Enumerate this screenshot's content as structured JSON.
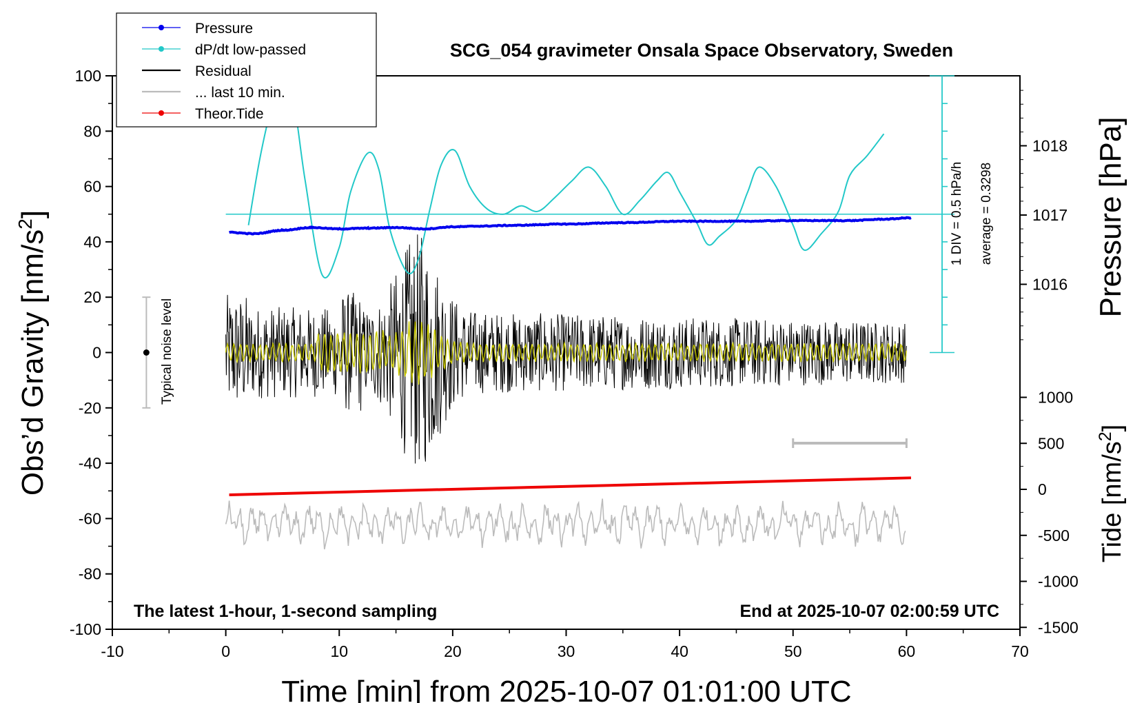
{
  "chart_data": {
    "type": "line",
    "title": "SCG_054 gravimeter Onsala Space Observatory, Sweden",
    "xlabel": "Time [min] from 2025-10-07 01:01:00 UTC",
    "ylabel_left_main": "Obs’d Gravity [nm/s",
    "ylabel_left_sup": "2",
    "ylabel_left_close": "]",
    "ylabel_right_pressure": "Pressure [hPa]",
    "ylabel_right_tide_main": "Tide [nm/s",
    "ylabel_right_tide_sup": "2",
    "ylabel_right_tide_close": "]",
    "xlim": [
      -10,
      70
    ],
    "ylim_left": [
      -100,
      100
    ],
    "x_ticks": [
      -10,
      0,
      10,
      20,
      30,
      40,
      50,
      60,
      70
    ],
    "y_ticks_left": [
      -100,
      -80,
      -60,
      -40,
      -20,
      0,
      20,
      40,
      60,
      80,
      100
    ],
    "pressure_ticks": [
      1016,
      1017,
      1018
    ],
    "tide_ticks": [
      1000,
      500,
      0,
      -500,
      -1000,
      -1500
    ],
    "annotation_bottom_left": "The latest 1-hour, 1-second sampling",
    "annotation_bottom_right": "End at 2025-10-07 02:00:59 UTC",
    "noise_label": "Typical noise level",
    "noise_range": [
      -20,
      20
    ],
    "dpdt_scale_label": "1 DIV = 0.5 hPa/h",
    "dpdt_average_label": "average = 0.3298",
    "last10_bar_range": [
      50,
      60
    ],
    "legend": [
      {
        "label": "Pressure",
        "color": "#0000ee",
        "marker": true
      },
      {
        "label": "dP/dt low-passed",
        "color": "#22c8c8",
        "marker": true
      },
      {
        "label": "Residual",
        "color": "#000000",
        "marker": false
      },
      {
        "label": "... last 10 min.",
        "color": "#bbbbbb",
        "marker": false
      },
      {
        "label": "Theor.Tide",
        "color": "#ee0000",
        "marker": true
      }
    ],
    "series": [
      {
        "name": "Pressure",
        "units": "hPa",
        "color": "#0000ee",
        "x": [
          0.3,
          2.5,
          5,
          7.5,
          10,
          12.5,
          15,
          17.5,
          20,
          22.5,
          25,
          30,
          35,
          40,
          45,
          50,
          55,
          58,
          60.4
        ],
        "y": [
          1016.75,
          1016.73,
          1016.78,
          1016.82,
          1016.8,
          1016.81,
          1016.82,
          1016.8,
          1016.83,
          1016.84,
          1016.85,
          1016.87,
          1016.89,
          1016.91,
          1016.91,
          1016.92,
          1016.92,
          1016.94,
          1016.96
        ]
      },
      {
        "name": "dP/dt low-passed",
        "units": "axis value",
        "color": "#22c8c8",
        "x": [
          2,
          3,
          4,
          5,
          6,
          7,
          8.5,
          10,
          11,
          12.5,
          13.5,
          14.5,
          16,
          17,
          18,
          19,
          20.2,
          21.5,
          23,
          24.5,
          26,
          27.5,
          29,
          30.5,
          32,
          33.5,
          35,
          36.5,
          38,
          39,
          40,
          41.5,
          42.5,
          43.5,
          45,
          46,
          47,
          48.5,
          50,
          51,
          52.5,
          54,
          55,
          56.5,
          58
        ],
        "y": [
          46,
          70,
          88,
          98,
          90,
          62,
          28,
          38,
          58,
          72,
          66,
          44,
          29,
          34,
          52,
          68,
          73,
          60,
          52,
          50,
          53,
          51,
          56,
          62,
          67,
          60,
          50,
          55,
          62,
          65,
          58,
          47,
          39,
          42,
          48,
          58,
          67,
          60,
          46,
          37,
          43,
          51,
          64,
          71,
          79
        ]
      },
      {
        "name": "Residual",
        "color": "#000000",
        "x_range": [
          0,
          60
        ],
        "envelope_peak_at": 17,
        "peak_amplitude": 40
      },
      {
        "name": "Residual low-passed",
        "color": "#c8c800",
        "x_range": [
          0,
          60
        ],
        "peak_amplitude": 12
      },
      {
        "name": "... last 10 min.",
        "color": "#bbbbbb",
        "x_range": [
          0,
          60
        ],
        "y_center": -62
      },
      {
        "name": "Theor.Tide",
        "units": "nm/s2",
        "color": "#ee0000",
        "x": [
          0.3,
          60.4
        ],
        "y": [
          -60,
          125
        ]
      }
    ]
  }
}
